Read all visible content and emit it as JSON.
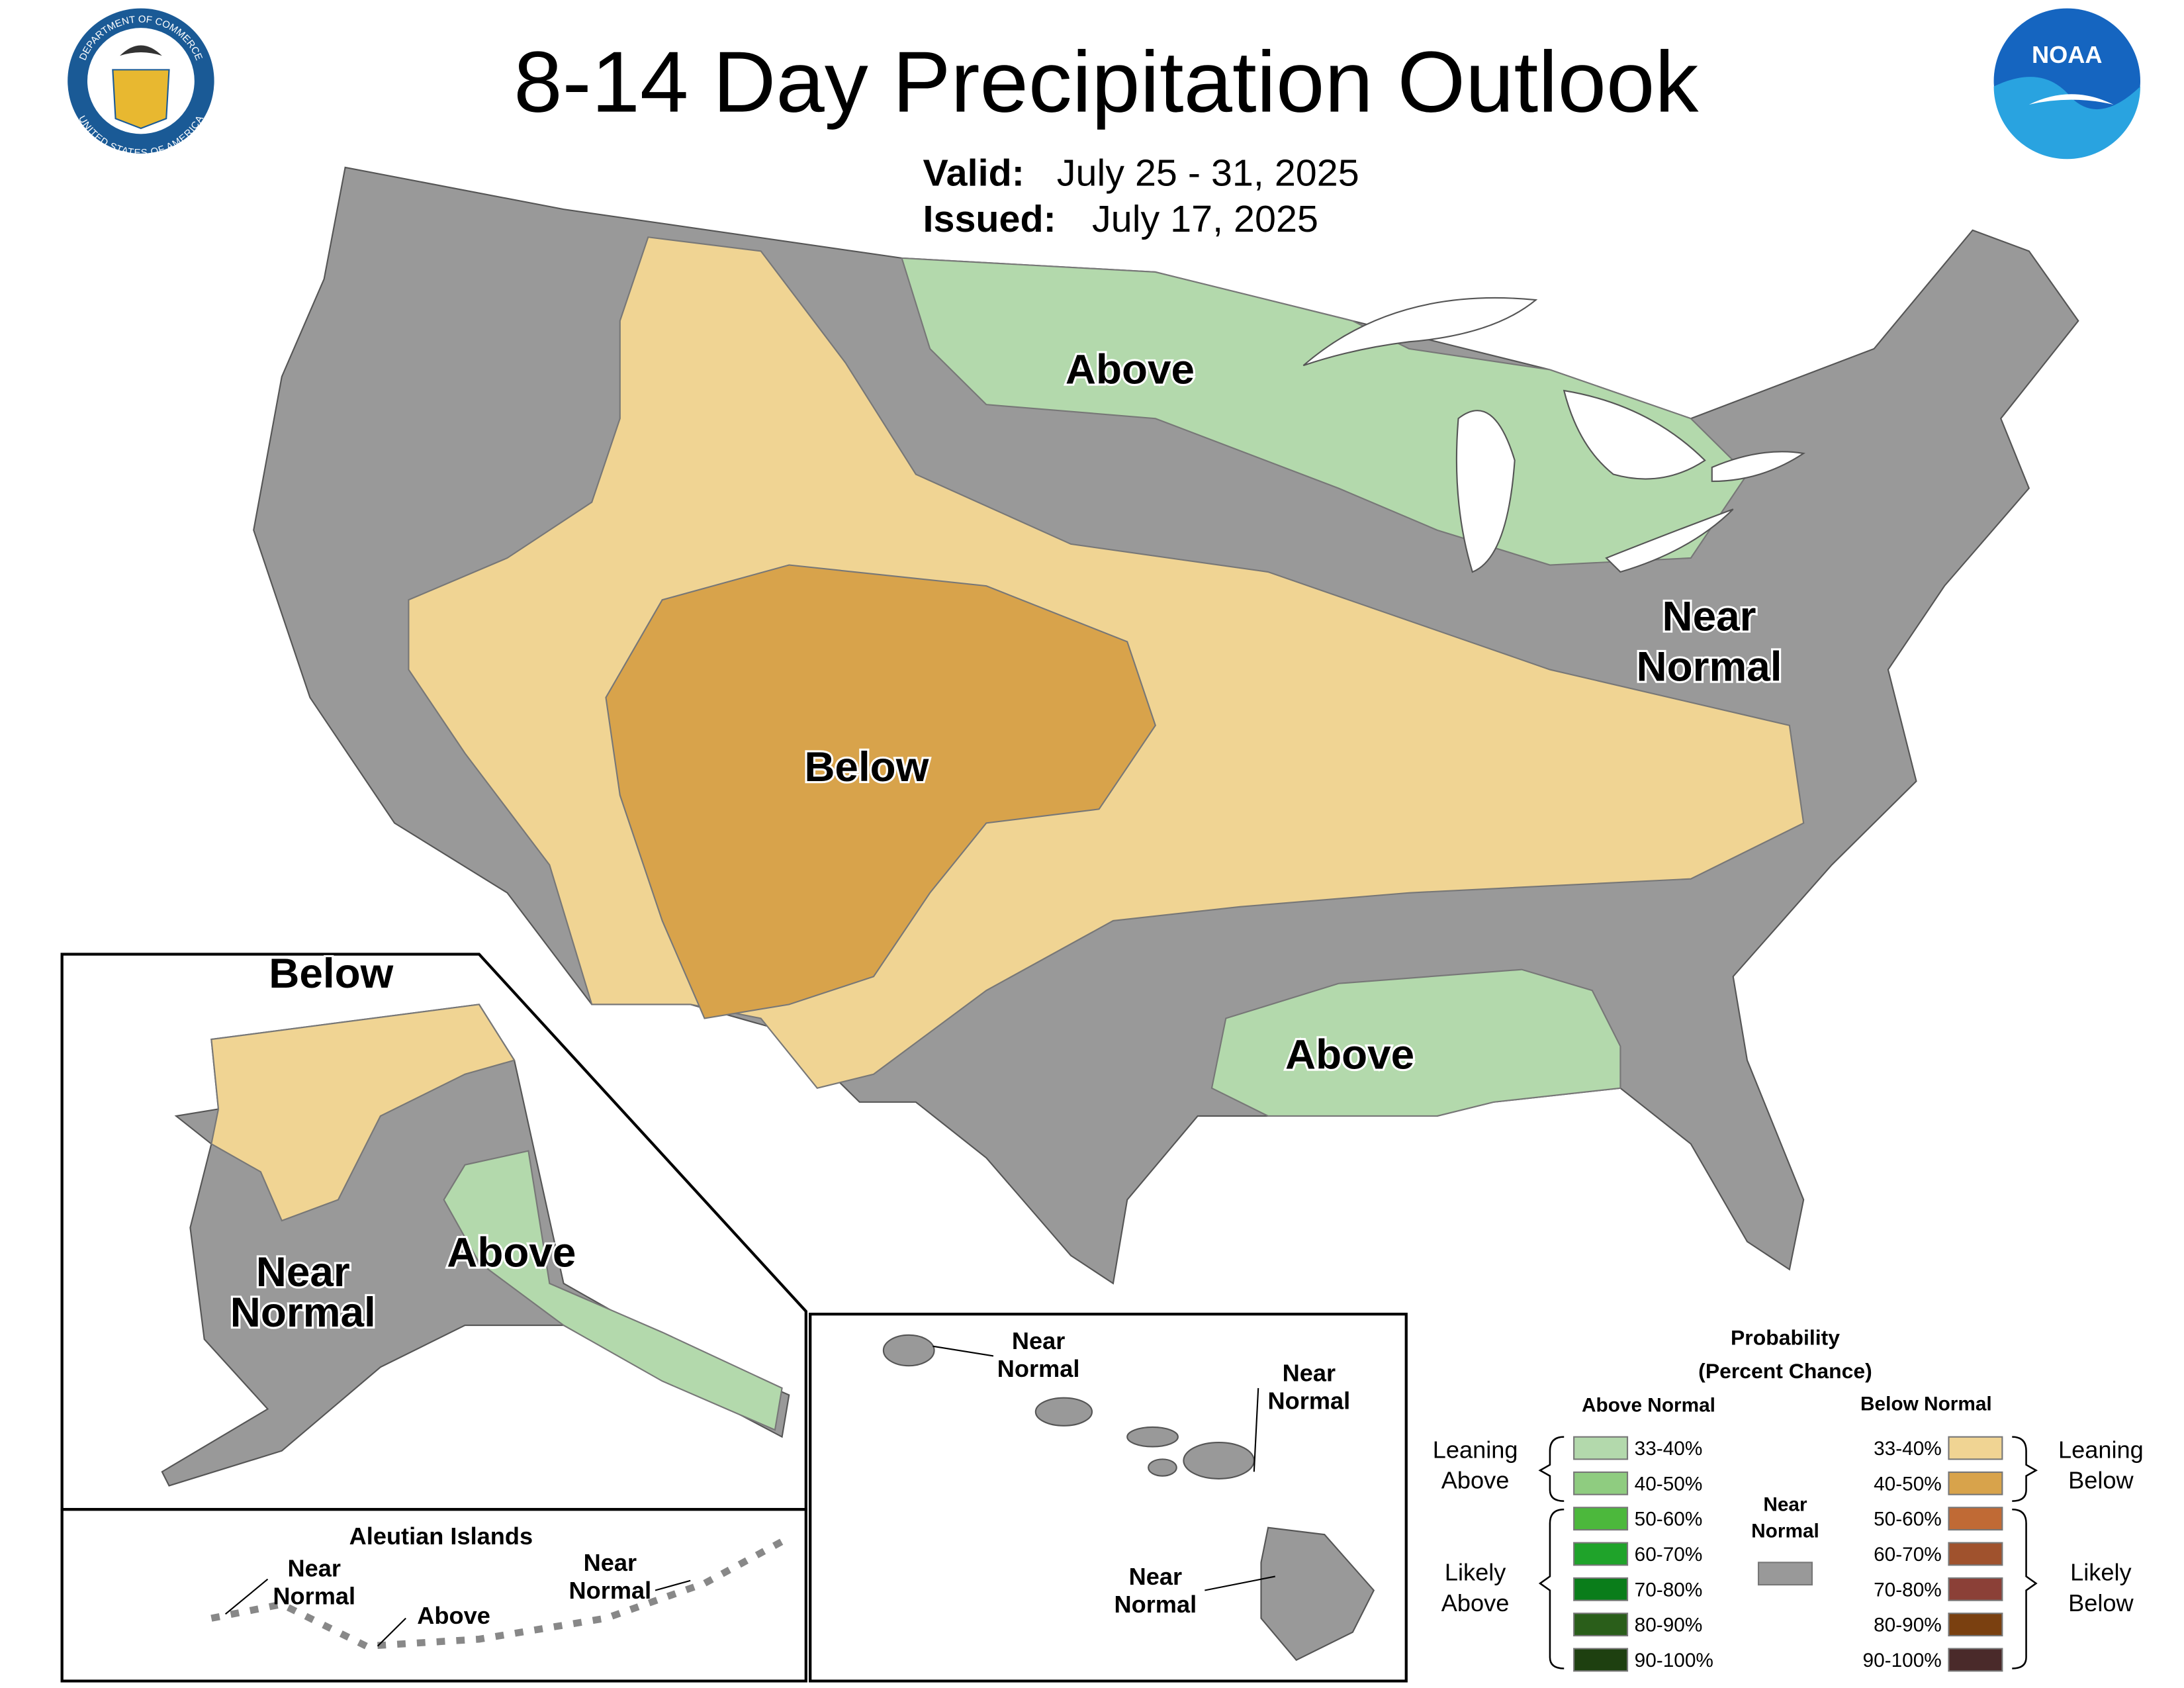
{
  "header": {
    "title": "8-14 Day Precipitation Outlook",
    "valid_label": "Valid:",
    "valid_dates": "July 25 - 31, 2025",
    "issued_label": "Issued:",
    "issued_date": "July 17, 2025"
  },
  "logos": {
    "commerce_top": "DEPARTMENT OF COMMERCE",
    "commerce_bottom": "UNITED STATES OF AMERICA",
    "noaa": "NOAA"
  },
  "conus_labels": [
    {
      "lines": [
        "Above"
      ]
    },
    {
      "lines": [
        "Below"
      ]
    },
    {
      "lines": [
        "Near",
        "Normal"
      ]
    },
    {
      "lines": [
        "Above"
      ]
    }
  ],
  "alaska_labels": [
    {
      "lines": [
        "Below"
      ]
    },
    {
      "lines": [
        "Near",
        "Normal"
      ]
    },
    {
      "lines": [
        "Above"
      ]
    }
  ],
  "aleutians": {
    "title": "Aleutian Islands",
    "labels": [
      {
        "lines": [
          "Near",
          "Normal"
        ]
      },
      {
        "lines": [
          "Above"
        ]
      },
      {
        "lines": [
          "Near",
          "Normal"
        ]
      }
    ]
  },
  "hawaii_labels": [
    {
      "lines": [
        "Near",
        "Normal"
      ]
    },
    {
      "lines": [
        "Near",
        "Normal"
      ]
    },
    {
      "lines": [
        "Near",
        "Normal"
      ]
    }
  ],
  "legend": {
    "title": [
      "Probability",
      "(Percent Chance)"
    ],
    "above_header": "Above Normal",
    "below_header": "Below Normal",
    "near": {
      "lines": [
        "Near",
        "Normal"
      ],
      "color": "#999999"
    },
    "above": [
      {
        "label": "33-40%",
        "color": "#b3d9ac"
      },
      {
        "label": "40-50%",
        "color": "#8fcc80"
      },
      {
        "label": "50-60%",
        "color": "#4cb83c"
      },
      {
        "label": "60-70%",
        "color": "#1fa32a"
      },
      {
        "label": "70-80%",
        "color": "#0a7d1a"
      },
      {
        "label": "80-90%",
        "color": "#2a5e1a"
      },
      {
        "label": "90-100%",
        "color": "#1e4010"
      }
    ],
    "below": [
      {
        "label": "33-40%",
        "color": "#f0d493"
      },
      {
        "label": "40-50%",
        "color": "#d8a34b"
      },
      {
        "label": "50-60%",
        "color": "#c06a35"
      },
      {
        "label": "60-70%",
        "color": "#a0522d"
      },
      {
        "label": "70-80%",
        "color": "#8b4037"
      },
      {
        "label": "80-90%",
        "color": "#7a4010"
      },
      {
        "label": "90-100%",
        "color": "#4a2a2a"
      }
    ],
    "groups": [
      {
        "lines": [
          "Leaning",
          "Above"
        ]
      },
      {
        "lines": [
          "Likely",
          "Above"
        ]
      },
      {
        "lines": [
          "Leaning",
          "Below"
        ]
      },
      {
        "lines": [
          "Likely",
          "Below"
        ]
      }
    ]
  }
}
